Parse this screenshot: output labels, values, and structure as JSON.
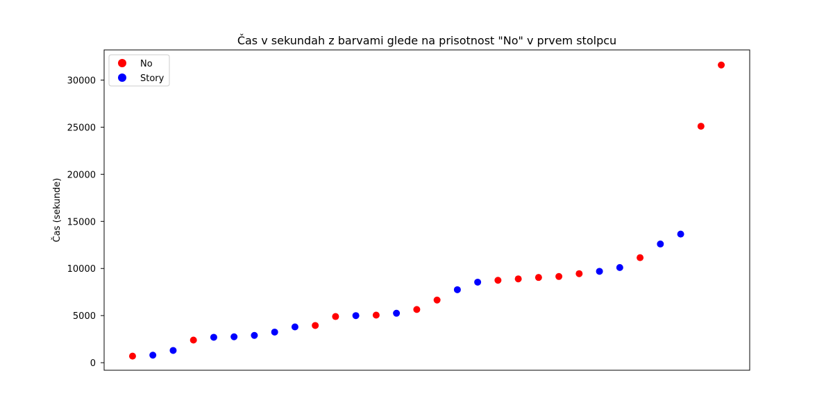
{
  "chart_data": {
    "type": "scatter",
    "title": "Čas v sekundah z barvami glede na prisotnost \"No\" v prvem stolpcu",
    "xlabel": "",
    "ylabel": "Čas (sekunde)",
    "ylim": [
      -800,
      33200
    ],
    "yticks": [
      0,
      5000,
      10000,
      15000,
      20000,
      25000,
      30000
    ],
    "grid": false,
    "legend_position": "top-left",
    "series": [
      {
        "name": "No",
        "color": "#ff0000"
      },
      {
        "name": "Story",
        "color": "#0000ff"
      }
    ],
    "points": [
      {
        "x": 1,
        "y": 700,
        "series": "No"
      },
      {
        "x": 2,
        "y": 800,
        "series": "Story"
      },
      {
        "x": 3,
        "y": 1300,
        "series": "Story"
      },
      {
        "x": 4,
        "y": 2400,
        "series": "No"
      },
      {
        "x": 5,
        "y": 2700,
        "series": "Story"
      },
      {
        "x": 6,
        "y": 2750,
        "series": "Story"
      },
      {
        "x": 7,
        "y": 2900,
        "series": "Story"
      },
      {
        "x": 8,
        "y": 3250,
        "series": "Story"
      },
      {
        "x": 9,
        "y": 3800,
        "series": "Story"
      },
      {
        "x": 10,
        "y": 3950,
        "series": "No"
      },
      {
        "x": 11,
        "y": 4900,
        "series": "No"
      },
      {
        "x": 12,
        "y": 5000,
        "series": "Story"
      },
      {
        "x": 13,
        "y": 5050,
        "series": "No"
      },
      {
        "x": 14,
        "y": 5250,
        "series": "Story"
      },
      {
        "x": 15,
        "y": 5650,
        "series": "No"
      },
      {
        "x": 16,
        "y": 6650,
        "series": "No"
      },
      {
        "x": 17,
        "y": 7750,
        "series": "Story"
      },
      {
        "x": 18,
        "y": 8550,
        "series": "Story"
      },
      {
        "x": 19,
        "y": 8750,
        "series": "No"
      },
      {
        "x": 20,
        "y": 8900,
        "series": "No"
      },
      {
        "x": 21,
        "y": 9050,
        "series": "No"
      },
      {
        "x": 22,
        "y": 9150,
        "series": "No"
      },
      {
        "x": 23,
        "y": 9450,
        "series": "No"
      },
      {
        "x": 24,
        "y": 9700,
        "series": "Story"
      },
      {
        "x": 25,
        "y": 10100,
        "series": "Story"
      },
      {
        "x": 26,
        "y": 11150,
        "series": "No"
      },
      {
        "x": 27,
        "y": 12600,
        "series": "Story"
      },
      {
        "x": 28,
        "y": 13650,
        "series": "Story"
      },
      {
        "x": 29,
        "y": 25100,
        "series": "No"
      },
      {
        "x": 30,
        "y": 31600,
        "series": "No"
      }
    ]
  }
}
